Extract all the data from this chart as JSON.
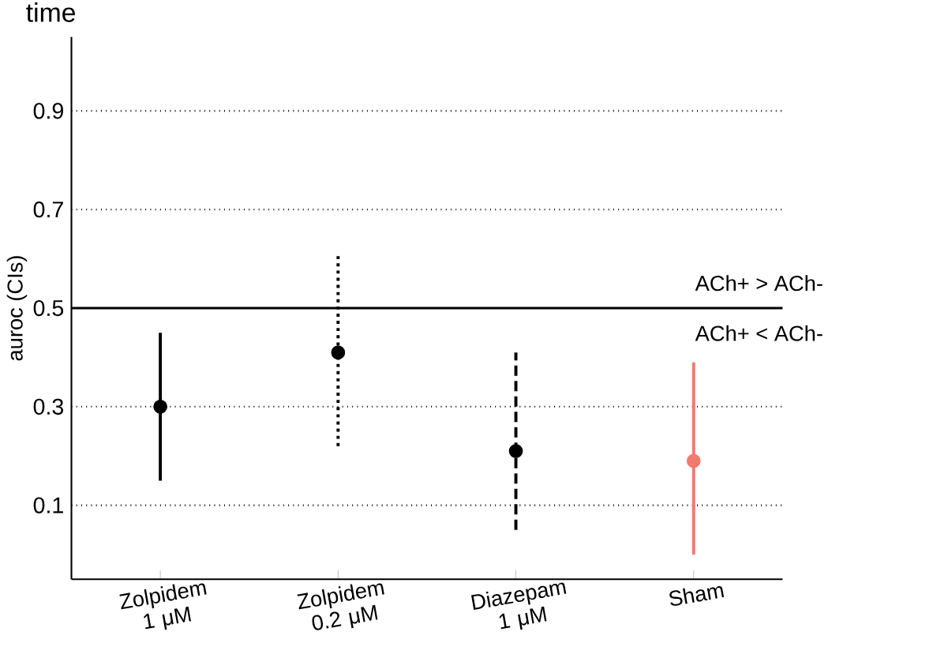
{
  "chart_data": {
    "type": "scatter",
    "title": "time",
    "ylabel": "auroc (CIs)",
    "categories": [
      "Zolpidem 1 μM",
      "Zolpidem 0.2 μM",
      "Diazepam 1 μM",
      "Sham"
    ],
    "series": [
      {
        "color": "#000000",
        "line_style": "solid",
        "values": [
          0.3,
          null,
          null,
          null
        ],
        "errors": [
          [
            0.15,
            0.45
          ],
          null,
          null,
          null
        ]
      },
      {
        "color": "#000000",
        "line_style": "dotted",
        "values": [
          null,
          0.41,
          null,
          null
        ],
        "errors": [
          null,
          [
            0.22,
            0.61
          ],
          null,
          null
        ]
      },
      {
        "color": "#000000",
        "line_style": "dashed",
        "values": [
          null,
          null,
          0.21,
          null
        ],
        "errors": [
          null,
          null,
          [
            0.05,
            0.41
          ],
          null
        ]
      },
      {
        "color": "#f07a6e",
        "line_style": "solid",
        "values": [
          null,
          null,
          null,
          0.19
        ],
        "errors": [
          null,
          null,
          null,
          [
            0.0,
            0.39
          ]
        ]
      }
    ],
    "ylim": [
      -0.05,
      1.05
    ],
    "yticks": [
      0.1,
      0.3,
      0.5,
      0.7,
      0.9
    ],
    "ref_lines": [
      {
        "axis": "y",
        "value": 0.5,
        "label": "ACh+ > ACh-",
        "color": "#000000",
        "line_style": "solid"
      }
    ],
    "annotations": [
      "ACh+ < ACh-"
    ],
    "grid": "y",
    "marker": "circle"
  }
}
